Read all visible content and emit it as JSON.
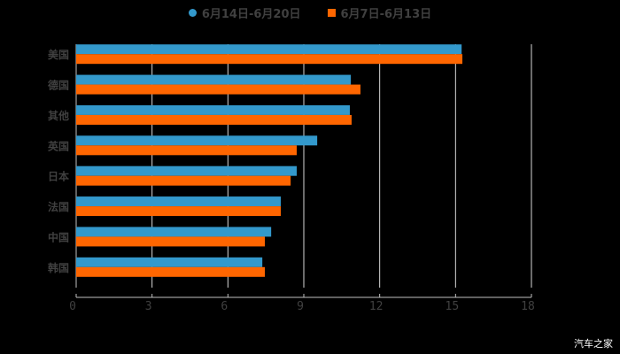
{
  "legend": [
    {
      "label": "6月14日-6月20日",
      "color": "#3399cc",
      "shape": "circle"
    },
    {
      "label": "6月7日-6月13日",
      "color": "#ff6600",
      "shape": "square"
    }
  ],
  "watermark": "汽车之家",
  "chart_data": {
    "type": "bar",
    "orientation": "horizontal",
    "title": "",
    "xlabel": "",
    "ylabel": "",
    "categories": [
      "美国",
      "德国",
      "其他",
      "英国",
      "日本",
      "法国",
      "中国",
      "韩国"
    ],
    "series": [
      {
        "name": "6月14日-6月20日",
        "color": "#3399cc",
        "values": [
          15.24,
          10.86,
          10.82,
          9.53,
          8.72,
          8.09,
          7.71,
          7.36
        ]
      },
      {
        "name": "6月7日-6月13日",
        "color": "#ff6600",
        "values": [
          15.27,
          11.24,
          10.89,
          8.72,
          8.48,
          8.09,
          7.46,
          7.46
        ]
      }
    ],
    "xlim": [
      0,
      18
    ],
    "xticks": [
      0,
      3,
      6,
      9,
      12,
      15,
      18
    ],
    "grid": true,
    "legend_position": "top"
  }
}
